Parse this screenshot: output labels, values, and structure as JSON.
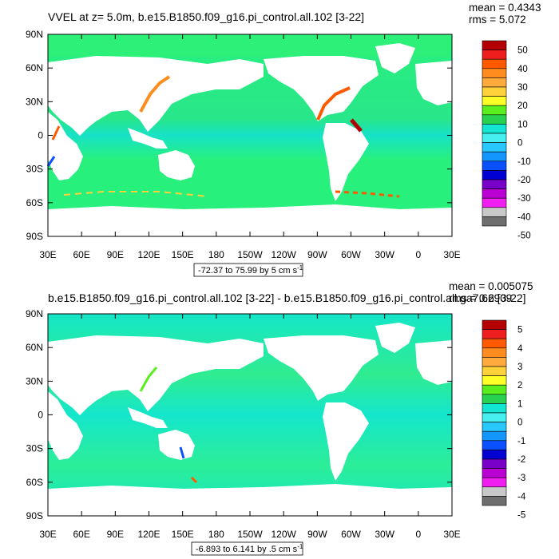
{
  "panels": [
    {
      "title": "VVEL at z=   5.0m, b.e15.B1850.f09_g16.pi_control.all.102 [3-22]",
      "mean_label": "mean = 0.4343",
      "rms_label": "rms = 5.072",
      "range_label": "-72.37 to 75.99 by 5 cm s",
      "range_sup": "-1"
    },
    {
      "title": "b.e15.B1850.f09_g16.pi_control.all.102 [3-22] - b.e15.B1850.f09_g16.pi_control.all.ga7.66 [3-22]",
      "mean_label": "mean = 0.005075",
      "rms_label": "rms = 0.2909",
      "range_label": "-6.893 to 6.141 by .5 cm s",
      "range_sup": "-1"
    }
  ],
  "chart_data": [
    {
      "type": "heatmap",
      "title": "VVEL at z=   5.0m, b.e15.B1850.f09_g16.pi_control.all.102 [3-22]",
      "x_ticks": [
        "30E",
        "60E",
        "90E",
        "120E",
        "150E",
        "180",
        "150W",
        "120W",
        "90W",
        "60W",
        "30W",
        "0",
        "30E"
      ],
      "y_ticks": [
        "90N",
        "60N",
        "30N",
        "0",
        "30S",
        "60S",
        "90S"
      ],
      "xlim": [
        30,
        390
      ],
      "ylim": [
        -90,
        90
      ],
      "colorbar_levels": [
        "50",
        "40",
        "30",
        "20",
        "10",
        "0",
        "-10",
        "-20",
        "-30",
        "-40",
        "-50"
      ],
      "min": -72.37,
      "max": 75.99,
      "interval": 5,
      "units": "cm s-1",
      "mean": 0.4343,
      "rms": 5.072
    },
    {
      "type": "heatmap",
      "title": "b.e15.B1850.f09_g16.pi_control.all.102 [3-22] - b.e15.B1850.f09_g16.pi_control.all.ga7.66 [3-22]",
      "x_ticks": [
        "30E",
        "60E",
        "90E",
        "120E",
        "150E",
        "180",
        "150W",
        "120W",
        "90W",
        "60W",
        "30W",
        "0",
        "30E"
      ],
      "y_ticks": [
        "90N",
        "60N",
        "30N",
        "0",
        "30S",
        "60S",
        "90S"
      ],
      "xlim": [
        30,
        390
      ],
      "ylim": [
        -90,
        90
      ],
      "colorbar_levels": [
        "5",
        "4",
        "3",
        "2",
        "1",
        "0",
        "-1",
        "-2",
        "-3",
        "-4",
        "-5"
      ],
      "min": -6.893,
      "max": 6.141,
      "interval": 0.5,
      "units": "cm s-1",
      "mean": 0.005075,
      "rms": 0.2909
    }
  ],
  "colors": {
    "ocean_base_top": "#28f07c",
    "ocean_base_bottom": "#12e6d2",
    "land": "#ffffff",
    "palette_top_to_bottom": [
      "#b40000",
      "#ee1e1e",
      "#ff5a00",
      "#ff8c1e",
      "#ffaa3c",
      "#ffd23c",
      "#ffff28",
      "#5aee1e",
      "#28d250",
      "#12e6d2",
      "#46f0f0",
      "#28c8ff",
      "#1496ff",
      "#0a50ff",
      "#0000d2",
      "#7800c8",
      "#ba00d2",
      "#f01ef0",
      "#c8c8c8",
      "#6e6e6e"
    ]
  }
}
